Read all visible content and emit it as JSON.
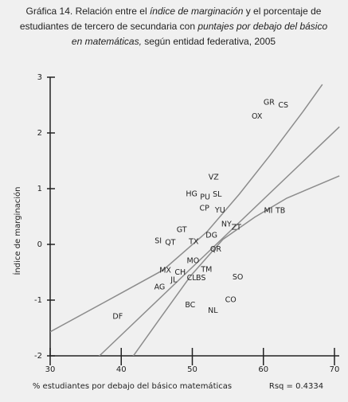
{
  "chart_data": {
    "type": "scatter",
    "title": [
      [
        {
          "text": "Gráfica 14. Relación entre el ",
          "italic": false
        },
        {
          "text": "índice de marginación",
          "italic": true
        },
        {
          "text": " y el porcentaje de",
          "italic": false
        }
      ],
      [
        {
          "text": "estudiantes de tercero de secundaria con ",
          "italic": false
        },
        {
          "text": "puntajes por debajo del básico",
          "italic": true
        }
      ],
      [
        {
          "text": "en matemáticas,",
          "italic": true
        },
        {
          "text": " según entidad federativa, 2005",
          "italic": false
        }
      ]
    ],
    "xlabel": "% estudiantes por debajo del básico matemáticas",
    "ylabel": "Índice de marginación",
    "annotation": "Rsq = 0.4334",
    "xlim": [
      30,
      70
    ],
    "ylim": [
      -2,
      3
    ],
    "xticks": [
      30,
      40,
      50,
      60,
      70
    ],
    "yticks": [
      -2,
      -1,
      0,
      1,
      2,
      3
    ],
    "labels": [
      "GR",
      "CS",
      "OX",
      "VZ",
      "HG",
      "PU",
      "SL",
      "CP",
      "YU",
      "MI",
      "TB",
      "NY",
      "ZT",
      "GT",
      "DG",
      "SI",
      "QT",
      "TX",
      "QR",
      "MO",
      "MX",
      "TM",
      "CH",
      "SO",
      "CL",
      "BS",
      "JL",
      "AG",
      "CO",
      "BC",
      "NL",
      "DF"
    ],
    "x": [
      60.8,
      62.8,
      59.1,
      53.0,
      49.9,
      51.8,
      53.5,
      51.7,
      53.9,
      60.7,
      62.4,
      54.8,
      56.2,
      48.5,
      52.7,
      45.2,
      46.9,
      50.2,
      53.3,
      50.1,
      46.2,
      52.0,
      48.3,
      56.4,
      49.9,
      51.2,
      47.4,
      45.4,
      55.4,
      49.7,
      52.9,
      39.5
    ],
    "y": [
      2.54,
      2.49,
      2.29,
      1.2,
      0.9,
      0.84,
      0.89,
      0.64,
      0.61,
      0.6,
      0.6,
      0.36,
      0.3,
      0.26,
      0.16,
      0.06,
      0.03,
      0.04,
      -0.09,
      -0.3,
      -0.47,
      -0.46,
      -0.51,
      -0.59,
      -0.61,
      -0.61,
      -0.64,
      -0.77,
      -1.0,
      -1.09,
      -1.19,
      -1.3
    ],
    "point_color": "#333333",
    "lines": [
      {
        "x": [
          36.2,
          70.7
        ],
        "y": [
          -2.09,
          2.11
        ]
      },
      {
        "x": [
          30,
          40.2,
          45.9,
          52.1,
          56.6,
          61.0,
          65.5,
          68.3
        ],
        "y": [
          -1.57,
          -0.86,
          -0.46,
          0.23,
          0.9,
          1.61,
          2.37,
          2.87
        ]
      },
      {
        "x": [
          41.2,
          45.4,
          49.8,
          54.3,
          58.8,
          63.3,
          70.7
        ],
        "y": [
          -2.09,
          -1.34,
          -0.56,
          0.09,
          0.49,
          0.83,
          1.23
        ]
      }
    ],
    "line_color": "#8c8c8c"
  }
}
